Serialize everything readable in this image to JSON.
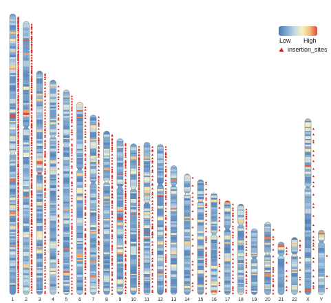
{
  "legend": {
    "low_label": "Low",
    "high_label": "High",
    "insertion_label": "insertion_sites",
    "gradient_colors": [
      "#4a78b4",
      "#7da6cf",
      "#bdd6e6",
      "#f6f1c4",
      "#f2c37c",
      "#e0473a"
    ],
    "marker_color": "#d62418"
  },
  "chromosomes": [
    {
      "name": "1",
      "length": 248.9,
      "centromere": 123.4,
      "insertion_density": 3.2
    },
    {
      "name": "2",
      "length": 242.2,
      "centromere": 93.9,
      "insertion_density": 2.6
    },
    {
      "name": "3",
      "length": 198.3,
      "centromere": 90.9,
      "insertion_density": 2.0
    },
    {
      "name": "4",
      "length": 190.2,
      "centromere": 50.0,
      "insertion_density": 1.2
    },
    {
      "name": "5",
      "length": 181.5,
      "centromere": 48.8,
      "insertion_density": 1.5
    },
    {
      "name": "6",
      "length": 170.8,
      "centromere": 59.8,
      "insertion_density": 1.9
    },
    {
      "name": "7",
      "length": 159.3,
      "centromere": 60.1,
      "insertion_density": 2.1
    },
    {
      "name": "8",
      "length": 145.1,
      "centromere": 45.2,
      "insertion_density": 2.0
    },
    {
      "name": "9",
      "length": 138.4,
      "centromere": 43.0,
      "insertion_density": 1.9
    },
    {
      "name": "10",
      "length": 133.8,
      "centromere": 39.8,
      "insertion_density": 3.0
    },
    {
      "name": "11",
      "length": 135.1,
      "centromere": 53.4,
      "insertion_density": 1.6
    },
    {
      "name": "12",
      "length": 133.3,
      "centromere": 35.5,
      "insertion_density": 1.8
    },
    {
      "name": "13",
      "length": 114.4,
      "centromere": 17.7,
      "insertion_density": 0.0
    },
    {
      "name": "14",
      "length": 107.0,
      "centromere": 17.2,
      "insertion_density": 0.9
    },
    {
      "name": "15",
      "length": 102.0,
      "centromere": 19.0,
      "insertion_density": 1.4
    },
    {
      "name": "16",
      "length": 90.3,
      "centromere": 36.8,
      "insertion_density": 1.1
    },
    {
      "name": "17",
      "length": 83.3,
      "centromere": 25.1,
      "insertion_density": 1.5
    },
    {
      "name": "18",
      "length": 80.4,
      "centromere": 18.5,
      "insertion_density": 1.6
    },
    {
      "name": "19",
      "length": 58.6,
      "centromere": 26.2,
      "insertion_density": 0.0
    },
    {
      "name": "20",
      "length": 64.4,
      "centromere": 28.1,
      "insertion_density": 1.0
    },
    {
      "name": "21",
      "length": 46.7,
      "centromere": 12.0,
      "insertion_density": 0.9
    },
    {
      "name": "22",
      "length": 50.8,
      "centromere": 15.0,
      "insertion_density": 1.0
    },
    {
      "name": "X",
      "length": 156.0,
      "centromere": 60.6,
      "insertion_density": 0.8
    },
    {
      "name": "Y",
      "length": 57.2,
      "centromere": 10.4,
      "insertion_density": 0.3
    }
  ]
}
